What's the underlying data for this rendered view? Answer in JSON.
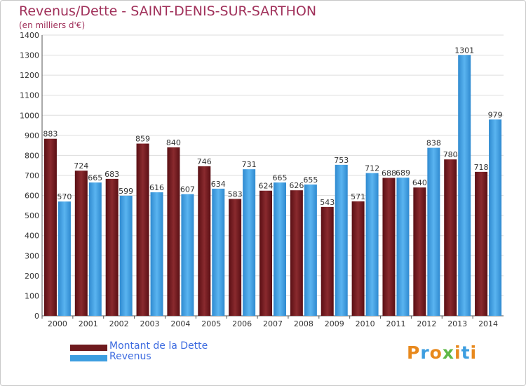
{
  "title": "Revenus/Dette - SAINT-DENIS-SUR-SARTHON",
  "subtitle": "(en milliers d'€)",
  "logo_text": "Proxiti",
  "colors": {
    "title": "#a0305a",
    "dette": "#6e1a1e",
    "revenus": "#3d9ee0",
    "legend_text": "#3d6be0",
    "grid": "#dddddd"
  },
  "chart_data": {
    "type": "bar",
    "categories": [
      "2000",
      "2001",
      "2002",
      "2003",
      "2004",
      "2005",
      "2006",
      "2007",
      "2008",
      "2009",
      "2010",
      "2011",
      "2012",
      "2013",
      "2014"
    ],
    "series": [
      {
        "name": "Montant de la Dette",
        "color": "#6e1a1e",
        "values": [
          883,
          724,
          683,
          859,
          840,
          746,
          583,
          624,
          626,
          543,
          571,
          688,
          640,
          780,
          718
        ]
      },
      {
        "name": "Revenus",
        "color": "#3d9ee0",
        "values": [
          570,
          665,
          599,
          616,
          607,
          634,
          731,
          665,
          655,
          753,
          712,
          689,
          838,
          1301,
          979
        ]
      }
    ],
    "ylim": [
      0,
      1400
    ],
    "yticks": [
      0,
      100,
      200,
      300,
      400,
      500,
      600,
      700,
      800,
      900,
      1000,
      1100,
      1200,
      1300,
      1400
    ],
    "grid": true,
    "legend_position": "bottom-left"
  }
}
